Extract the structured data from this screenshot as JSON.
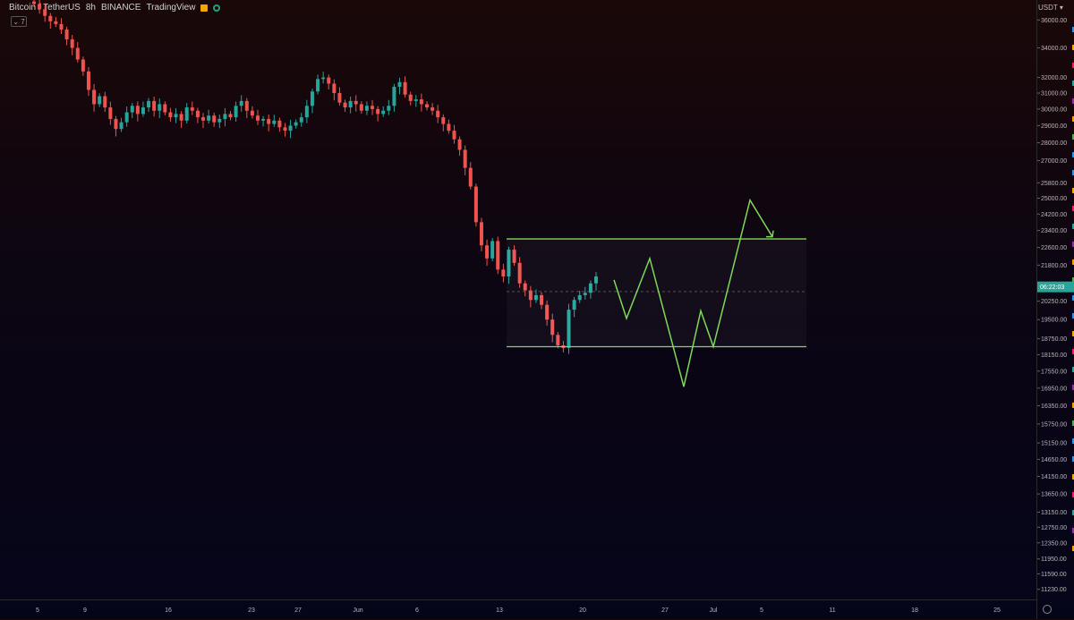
{
  "header": {
    "symbol": "Bitcoin / TetherUS",
    "interval": "8h",
    "exchange": "BINANCE",
    "source": "TradingView",
    "collapse_label": "7"
  },
  "axis": {
    "currency": "USDT",
    "countdown": "06:22:03",
    "current_price": 20850
  },
  "colors": {
    "up": "#26a69a",
    "down": "#ef5350",
    "drawing": "#7ed957"
  },
  "chart_data": {
    "type": "candlestick",
    "title": "Bitcoin / TetherUS",
    "interval": "8h",
    "y_scale": "log",
    "ylim": [
      11000,
      37500
    ],
    "y_ticks": [
      36000,
      34000,
      32000,
      31000,
      30000,
      29000,
      28000,
      27000,
      25800,
      25000,
      24200,
      23400,
      22600,
      21800,
      20250,
      19500,
      18750,
      18150,
      17550,
      16950,
      16350,
      15750,
      15150,
      14650,
      14150,
      13650,
      13150,
      12750,
      12350,
      11950,
      11590,
      11230
    ],
    "y_tick_labels": [
      "36000.00",
      "34000.00",
      "32000.00",
      "31000.00",
      "30000.00",
      "29000.00",
      "28000.00",
      "27000.00",
      "25800.00",
      "25000.00",
      "24200.00",
      "23400.00",
      "22600.00",
      "21800.00",
      "20250.00",
      "19500.00",
      "18750.00",
      "18150.00",
      "17550.00",
      "16950.00",
      "16350.00",
      "15750.00",
      "15150.00",
      "14650.00",
      "14150.00",
      "13650.00",
      "13150.00",
      "12750.00",
      "12350.00",
      "11950.00",
      "11590.00",
      "11230.00"
    ],
    "x_ticks": [
      "5",
      "9",
      "16",
      "23",
      "27",
      "Jun",
      "6",
      "13",
      "20",
      "27",
      "Jul",
      "5",
      "11",
      "18",
      "25"
    ],
    "close_path": [
      37200,
      36800,
      36300,
      35900,
      35700,
      35300,
      34600,
      34000,
      33200,
      32400,
      31200,
      30300,
      30800,
      30100,
      29400,
      28800,
      29200,
      29800,
      30200,
      29700,
      30100,
      30500,
      29900,
      30300,
      29800,
      29500,
      29700,
      29300,
      30100,
      29900,
      29500,
      29300,
      29600,
      29200,
      29400,
      29700,
      29500,
      30200,
      30500,
      29900,
      29600,
      29300,
      29400,
      29100,
      29300,
      28900,
      28700,
      29000,
      29200,
      29500,
      30200,
      31100,
      31900,
      32000,
      31600,
      31000,
      30400,
      30100,
      30500,
      30300,
      29900,
      30200,
      30000,
      29700,
      29900,
      30200,
      31400,
      31700,
      30900,
      30500,
      30600,
      30300,
      30100,
      29900,
      29500,
      29100,
      28700,
      28200,
      27600,
      26600,
      25600,
      23800,
      22700,
      22100,
      22900,
      21600,
      21300,
      22500,
      21900,
      21000,
      20700,
      20300,
      20500,
      20100,
      19500,
      18900,
      18500,
      18400,
      19900,
      20300,
      20500,
      20600,
      21000,
      21300
    ],
    "drawings": {
      "range_top": 23000,
      "range_bottom": 18450,
      "range_mid_dashed": 20650,
      "projection_path": [
        21150,
        19550,
        22100,
        17000,
        19850,
        18450,
        24900,
        23100
      ]
    }
  }
}
